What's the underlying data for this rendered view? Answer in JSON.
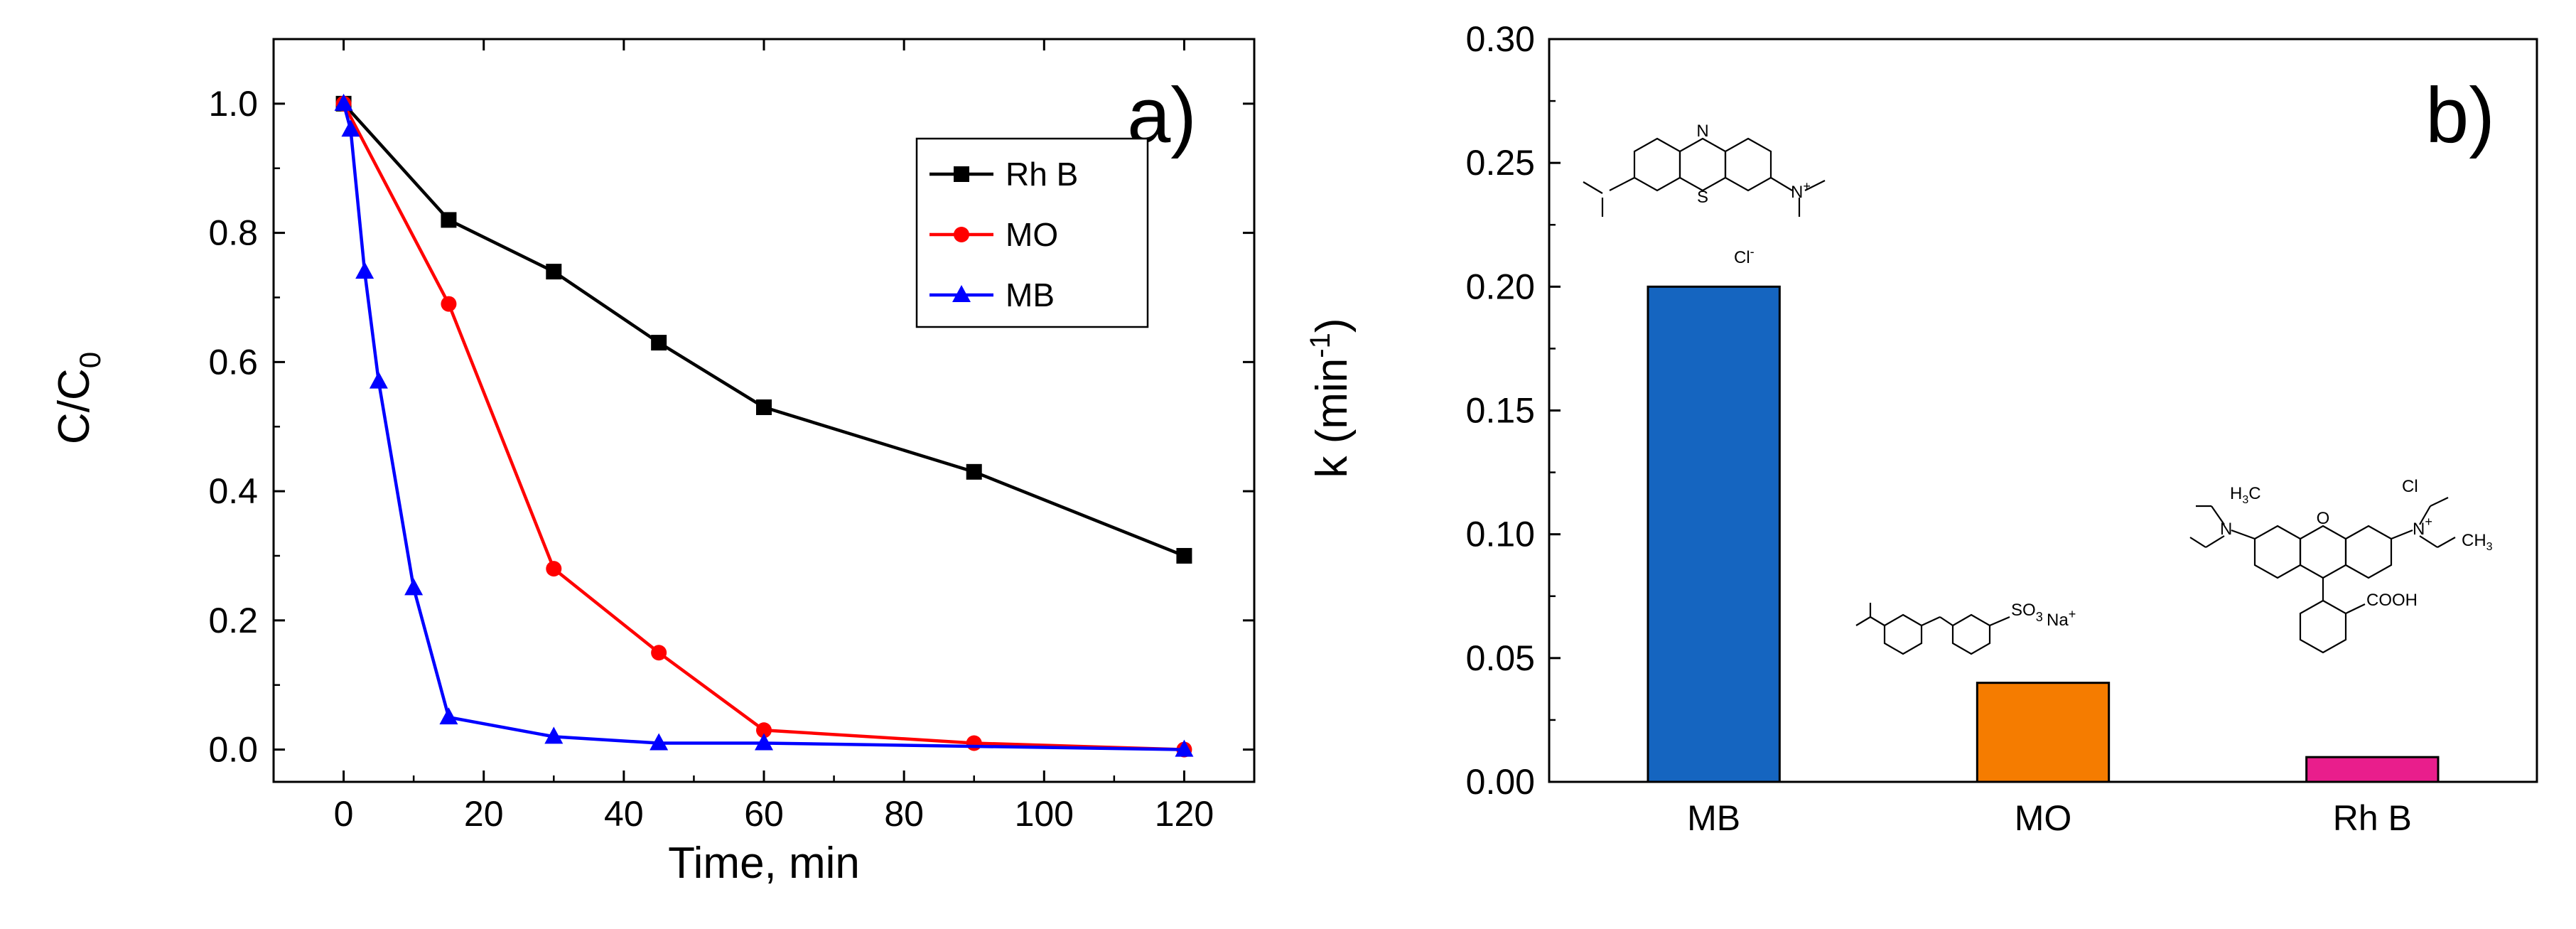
{
  "chart_data": [
    {
      "panel": "a)",
      "type": "line",
      "xlabel": "Time, min",
      "ylabel": "C/C",
      "ylabel_sub": "0",
      "xlim": [
        -10,
        130
      ],
      "ylim": [
        -0.05,
        1.1
      ],
      "xticks": [
        0,
        20,
        40,
        60,
        80,
        100,
        120
      ],
      "yticks": [
        0.0,
        0.2,
        0.4,
        0.6,
        0.8,
        1.0
      ],
      "ytick_labels": [
        "0.0",
        "0.2",
        "0.4",
        "0.6",
        "0.8",
        "1.0"
      ],
      "legend_position": "top-right",
      "series": [
        {
          "name": "Rh B",
          "color": "#000000",
          "marker": "square",
          "x": [
            0,
            15,
            30,
            45,
            60,
            90,
            120
          ],
          "y": [
            1.0,
            0.82,
            0.74,
            0.63,
            0.53,
            0.43,
            0.3
          ]
        },
        {
          "name": "MO",
          "color": "#ff0000",
          "marker": "circle",
          "x": [
            0,
            15,
            30,
            45,
            60,
            90,
            120
          ],
          "y": [
            1.0,
            0.69,
            0.28,
            0.15,
            0.03,
            0.01,
            0.0
          ]
        },
        {
          "name": "MB",
          "color": "#0000ff",
          "marker": "triangle",
          "x": [
            0,
            1,
            3,
            5,
            10,
            15,
            30,
            45,
            60,
            120
          ],
          "y": [
            1.0,
            0.96,
            0.74,
            0.57,
            0.25,
            0.05,
            0.02,
            0.01,
            0.01,
            0.0
          ]
        }
      ]
    },
    {
      "panel": "b)",
      "type": "bar",
      "ylabel": "k (min",
      "ylabel_sup": "-1",
      "ylabel_close": ")",
      "ylim": [
        0,
        0.3
      ],
      "yticks": [
        0.0,
        0.05,
        0.1,
        0.15,
        0.2,
        0.25,
        0.3
      ],
      "ytick_labels": [
        "0.00",
        "0.05",
        "0.10",
        "0.15",
        "0.20",
        "0.25",
        "0.30"
      ],
      "categories": [
        "MB",
        "MO",
        "Rh B"
      ],
      "values": [
        0.2,
        0.04,
        0.01
      ],
      "colors": [
        "#1565c0",
        "#f57c00",
        "#e91e8c"
      ],
      "annotations": {
        "mb_ring_n": "N",
        "mb_ring_s": "S",
        "mb_nplus": "N",
        "mb_plus": "+",
        "mb_counterion": "Cl",
        "mb_counterion_charge": "-",
        "mo_sulfonate": "SO",
        "mo_sulfonate_sub": "3",
        "mo_counterion": "Na",
        "mo_counterion_charge": "+",
        "rhb_cl": "Cl",
        "rhb_cooh": "COOH",
        "rhb_ch3": "CH",
        "rhb_ch3_sub": "3",
        "rhb_h3c": "H",
        "rhb_h3c_c": "C",
        "rhb_plus": "+"
      }
    }
  ]
}
